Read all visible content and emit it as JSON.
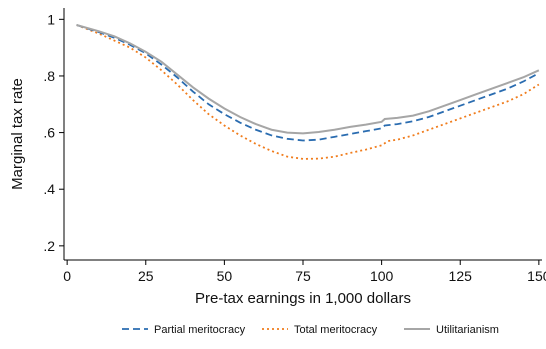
{
  "chart_data": {
    "type": "line",
    "xlabel": "Pre-tax earnings in 1,000 dollars",
    "ylabel": "Marginal tax rate",
    "xlim": [
      -1,
      151
    ],
    "ylim": [
      0.15,
      1.04
    ],
    "x_ticks": [
      0,
      25,
      50,
      75,
      100,
      125,
      150
    ],
    "x_tick_labels": [
      "0",
      "25",
      "50",
      "75",
      "100",
      "125",
      "150"
    ],
    "y_ticks": [
      0.2,
      0.4,
      0.6,
      0.8,
      1.0
    ],
    "y_tick_labels": [
      ".2",
      ".4",
      ".6",
      ".8",
      "1"
    ],
    "grid": false,
    "legend_position": "bottom",
    "series": [
      {
        "name": "Partial meritocracy",
        "color": "#2a6cb0",
        "dash": "dashed",
        "points": [
          [
            3,
            0.98
          ],
          [
            10,
            0.955
          ],
          [
            15,
            0.935
          ],
          [
            20,
            0.91
          ],
          [
            25,
            0.88
          ],
          [
            30,
            0.84
          ],
          [
            35,
            0.795
          ],
          [
            40,
            0.745
          ],
          [
            45,
            0.7
          ],
          [
            50,
            0.665
          ],
          [
            55,
            0.635
          ],
          [
            60,
            0.61
          ],
          [
            65,
            0.59
          ],
          [
            70,
            0.578
          ],
          [
            75,
            0.572
          ],
          [
            80,
            0.575
          ],
          [
            85,
            0.585
          ],
          [
            90,
            0.595
          ],
          [
            95,
            0.605
          ],
          [
            100,
            0.615
          ],
          [
            101,
            0.625
          ],
          [
            105,
            0.63
          ],
          [
            110,
            0.64
          ],
          [
            115,
            0.655
          ],
          [
            120,
            0.675
          ],
          [
            125,
            0.695
          ],
          [
            130,
            0.715
          ],
          [
            135,
            0.735
          ],
          [
            140,
            0.755
          ],
          [
            145,
            0.78
          ],
          [
            150,
            0.81
          ]
        ]
      },
      {
        "name": "Total meritocracy",
        "color": "#f07c1c",
        "dash": "dotted",
        "points": [
          [
            3,
            0.98
          ],
          [
            10,
            0.95
          ],
          [
            15,
            0.925
          ],
          [
            20,
            0.9
          ],
          [
            25,
            0.865
          ],
          [
            30,
            0.82
          ],
          [
            35,
            0.77
          ],
          [
            40,
            0.715
          ],
          [
            45,
            0.665
          ],
          [
            50,
            0.625
          ],
          [
            55,
            0.59
          ],
          [
            60,
            0.56
          ],
          [
            65,
            0.535
          ],
          [
            70,
            0.515
          ],
          [
            75,
            0.507
          ],
          [
            80,
            0.508
          ],
          [
            85,
            0.515
          ],
          [
            90,
            0.528
          ],
          [
            95,
            0.54
          ],
          [
            100,
            0.555
          ],
          [
            102,
            0.57
          ],
          [
            105,
            0.575
          ],
          [
            110,
            0.59
          ],
          [
            115,
            0.61
          ],
          [
            120,
            0.63
          ],
          [
            125,
            0.65
          ],
          [
            130,
            0.67
          ],
          [
            135,
            0.69
          ],
          [
            140,
            0.71
          ],
          [
            145,
            0.735
          ],
          [
            150,
            0.77
          ]
        ]
      },
      {
        "name": "Utilitarianism",
        "color": "#a6a6a6",
        "dash": "solid",
        "points": [
          [
            3,
            0.98
          ],
          [
            10,
            0.958
          ],
          [
            15,
            0.94
          ],
          [
            20,
            0.915
          ],
          [
            25,
            0.885
          ],
          [
            30,
            0.85
          ],
          [
            35,
            0.805
          ],
          [
            40,
            0.76
          ],
          [
            45,
            0.72
          ],
          [
            50,
            0.685
          ],
          [
            55,
            0.655
          ],
          [
            60,
            0.63
          ],
          [
            65,
            0.61
          ],
          [
            70,
            0.6
          ],
          [
            75,
            0.597
          ],
          [
            80,
            0.602
          ],
          [
            85,
            0.61
          ],
          [
            90,
            0.62
          ],
          [
            95,
            0.628
          ],
          [
            100,
            0.638
          ],
          [
            101,
            0.648
          ],
          [
            105,
            0.652
          ],
          [
            110,
            0.66
          ],
          [
            115,
            0.675
          ],
          [
            120,
            0.695
          ],
          [
            125,
            0.715
          ],
          [
            130,
            0.735
          ],
          [
            135,
            0.755
          ],
          [
            140,
            0.775
          ],
          [
            145,
            0.795
          ],
          [
            150,
            0.82
          ]
        ]
      }
    ]
  }
}
